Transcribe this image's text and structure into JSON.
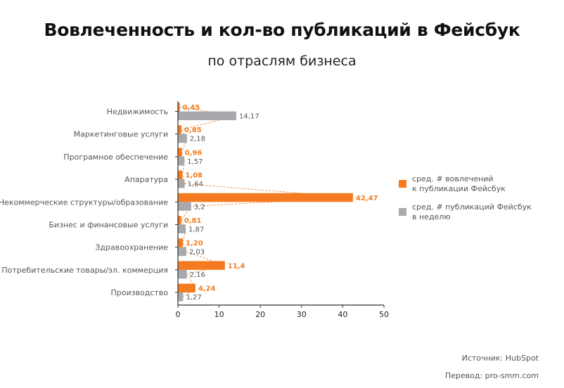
{
  "title": "Вовлеченность и кол-во публикаций в Фейсбук",
  "subtitle": "по отраслям бизнеса",
  "colors": {
    "engagement": "#F47B20",
    "posts": "#A7A9AC",
    "axis": "#333333",
    "text": "#555555",
    "connector": "#F47B20"
  },
  "legend": {
    "engagement_line1": "сред. # вовлечений",
    "engagement_line2": "к публикации Фейсбук",
    "posts_line1": "сред. # публикаций Фейсбук",
    "posts_line2": "в неделю"
  },
  "source": "Источник: HubSpot",
  "translation": "Перевод: pro-smm.com",
  "chart_data": {
    "type": "bar",
    "orientation": "horizontal",
    "categories": [
      "Недвижимость",
      "Маркетинговые услуги",
      "Програмное обеспечение",
      "Апаратура",
      "Некоммерческие структуры/образование",
      "Бизнес и финансовые услуги",
      "Здравоохранение",
      "Потребительские товары/эл. коммерция",
      "Производство"
    ],
    "series": [
      {
        "name": "сред. # вовлечений к публикации Фейсбук",
        "values": [
          0.45,
          0.85,
          0.96,
          1.08,
          42.47,
          0.81,
          1.2,
          11.4,
          4.24
        ],
        "labels": [
          "0,45",
          "0,85",
          "0,96",
          "1,08",
          "42,47",
          "0,81",
          "1,20",
          "11,4",
          "4,24"
        ]
      },
      {
        "name": "сред. # публикаций Фейсбук в неделю",
        "values": [
          14.17,
          2.18,
          1.57,
          1.64,
          3.2,
          1.87,
          2.03,
          2.16,
          1.27
        ],
        "labels": [
          "14,17",
          "2,18",
          "1,57",
          "1,64",
          "3,2",
          "1,87",
          "2,03",
          "2,16",
          "1,27"
        ]
      }
    ],
    "xlim": [
      0,
      50
    ],
    "xticks": [
      0,
      10,
      20,
      30,
      40,
      50
    ],
    "xlabel": "",
    "ylabel": "",
    "grid": false,
    "legend_position": "right"
  }
}
